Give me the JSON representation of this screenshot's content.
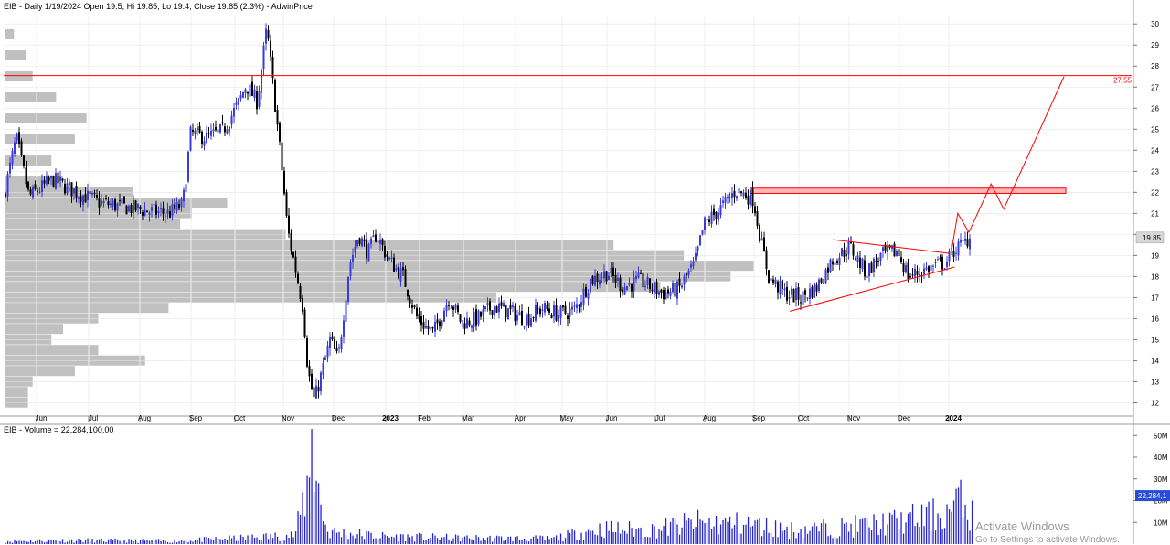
{
  "price_panel": {
    "header": "EIB - Daily 1/19/2024 Open 19.5, Hi 19.85, Lo 19.4, Close 19.85 (2.3%) - AdwinPrice"
  },
  "volume_panel": {
    "header": "EIB - Volume = 22,284,100.00"
  },
  "watermark": {
    "line1": "Activate Windows",
    "line2": "Go to Settings to activate Windows."
  },
  "colors": {
    "up_candle": "#3b3bdc",
    "down_candle": "#000000",
    "volume_bar": "#2323d0",
    "volume_profile": "#c0c0c0",
    "annotation": "#ff0000",
    "resistance_zone_fill": "#ffb6b6",
    "grid": "#e4e4e4",
    "price_badge": "#d8d8d8",
    "volume_badge": "#2a4bd7"
  },
  "chart_data": [
    {
      "type": "candlestick",
      "ticker": "EIB",
      "x_labels": [
        "Jun",
        "Jul",
        "Aug",
        "Sep",
        "Oct",
        "Nov",
        "Dec",
        "2023",
        "Feb",
        "Mar",
        "Apr",
        "May",
        "Jun",
        "Jul",
        "Aug",
        "Sep",
        "Oct",
        "Nov",
        "Dec",
        "2024"
      ],
      "y_ticks": [
        12,
        13,
        14,
        15,
        16,
        17,
        18,
        19,
        20,
        21,
        22,
        23,
        24,
        25,
        26,
        27,
        28,
        29,
        30
      ],
      "ylim": [
        11.5,
        30.4
      ],
      "last_price_label": "19.85",
      "horizontal_line": {
        "value": 27.55,
        "label": "27.55"
      },
      "resistance_zone": {
        "low": 21.95,
        "high": 22.2,
        "from_month": "Aug",
        "to_month": "2024"
      },
      "triangle": {
        "upper": [
          {
            "date": "2023-10-25",
            "value": 19.75
          },
          {
            "date": "2024-01-07",
            "value": 19.1
          }
        ],
        "lower": [
          {
            "date": "2023-09-28",
            "value": 16.35
          },
          {
            "date": "2024-01-10",
            "value": 18.45
          }
        ]
      },
      "projection_path": [
        {
          "date": "2024-01-08",
          "value": 19.2
        },
        {
          "date": "2024-01-12",
          "value": 21.0
        },
        {
          "date": "2024-01-19",
          "value": 20.1
        },
        {
          "date": "2024-02-02",
          "value": 22.4
        },
        {
          "date": "2024-02-10",
          "value": 21.2
        },
        {
          "date": "2024-03-19",
          "value": 27.5
        }
      ],
      "price_path": [
        {
          "date": "2022-05-20",
          "value": 21.8
        },
        {
          "date": "2022-05-28",
          "value": 24.6
        },
        {
          "date": "2022-06-05",
          "value": 21.8
        },
        {
          "date": "2022-06-20",
          "value": 22.6
        },
        {
          "date": "2022-07-05",
          "value": 22.0
        },
        {
          "date": "2022-07-20",
          "value": 21.5
        },
        {
          "date": "2022-08-05",
          "value": 21.3
        },
        {
          "date": "2022-08-20",
          "value": 21.1
        },
        {
          "date": "2022-09-01",
          "value": 21.0
        },
        {
          "date": "2022-09-10",
          "value": 21.4
        },
        {
          "date": "2022-09-15",
          "value": 24.8
        },
        {
          "date": "2022-09-25",
          "value": 24.6
        },
        {
          "date": "2022-10-05",
          "value": 24.9
        },
        {
          "date": "2022-10-15",
          "value": 26.2
        },
        {
          "date": "2022-10-20",
          "value": 27.1
        },
        {
          "date": "2022-10-27",
          "value": 26.3
        },
        {
          "date": "2022-11-02",
          "value": 29.8
        },
        {
          "date": "2022-11-07",
          "value": 26.4
        },
        {
          "date": "2022-11-12",
          "value": 22.8
        },
        {
          "date": "2022-11-15",
          "value": 20.3
        },
        {
          "date": "2022-11-25",
          "value": 16.5
        },
        {
          "date": "2022-11-28",
          "value": 13.5
        },
        {
          "date": "2022-12-02",
          "value": 12.1
        },
        {
          "date": "2022-12-07",
          "value": 13.5
        },
        {
          "date": "2022-12-12",
          "value": 15.0
        },
        {
          "date": "2022-12-17",
          "value": 14.0
        },
        {
          "date": "2022-12-24",
          "value": 18.5
        },
        {
          "date": "2022-12-30",
          "value": 20.0
        },
        {
          "date": "2023-01-05",
          "value": 19.1
        },
        {
          "date": "2023-01-10",
          "value": 20.0
        },
        {
          "date": "2023-01-18",
          "value": 18.8
        },
        {
          "date": "2023-01-27",
          "value": 18.0
        },
        {
          "date": "2023-02-05",
          "value": 16.0
        },
        {
          "date": "2023-02-15",
          "value": 15.3
        },
        {
          "date": "2023-02-25",
          "value": 17.0
        },
        {
          "date": "2023-03-05",
          "value": 15.8
        },
        {
          "date": "2023-03-15",
          "value": 16.0
        },
        {
          "date": "2023-03-25",
          "value": 16.6
        },
        {
          "date": "2023-04-05",
          "value": 16.3
        },
        {
          "date": "2023-04-15",
          "value": 16.0
        },
        {
          "date": "2023-04-25",
          "value": 16.5
        },
        {
          "date": "2023-05-05",
          "value": 16.2
        },
        {
          "date": "2023-05-15",
          "value": 16.4
        },
        {
          "date": "2023-05-25",
          "value": 17.8
        },
        {
          "date": "2023-06-05",
          "value": 18.2
        },
        {
          "date": "2023-06-15",
          "value": 17.5
        },
        {
          "date": "2023-06-25",
          "value": 17.8
        },
        {
          "date": "2023-07-10",
          "value": 17.2
        },
        {
          "date": "2023-07-20",
          "value": 17.4
        },
        {
          "date": "2023-07-30",
          "value": 18.6
        },
        {
          "date": "2023-08-05",
          "value": 20.5
        },
        {
          "date": "2023-08-15",
          "value": 21.2
        },
        {
          "date": "2023-08-25",
          "value": 22.1
        },
        {
          "date": "2023-09-05",
          "value": 21.7
        },
        {
          "date": "2023-09-10",
          "value": 19.6
        },
        {
          "date": "2023-09-15",
          "value": 17.9
        },
        {
          "date": "2023-09-25",
          "value": 17.2
        },
        {
          "date": "2023-10-05",
          "value": 17.0
        },
        {
          "date": "2023-10-15",
          "value": 17.5
        },
        {
          "date": "2023-10-25",
          "value": 18.8
        },
        {
          "date": "2023-11-05",
          "value": 19.4
        },
        {
          "date": "2023-11-15",
          "value": 18.2
        },
        {
          "date": "2023-11-25",
          "value": 19.0
        },
        {
          "date": "2023-12-05",
          "value": 19.2
        },
        {
          "date": "2023-12-12",
          "value": 18.0
        },
        {
          "date": "2023-12-25",
          "value": 18.4
        },
        {
          "date": "2024-01-05",
          "value": 18.7
        },
        {
          "date": "2024-01-10",
          "value": 19.3
        },
        {
          "date": "2024-01-15",
          "value": 19.5
        },
        {
          "date": "2024-01-19",
          "value": 19.85
        }
      ],
      "volume_profile_bins": [
        {
          "price": 29.5,
          "volume": 0.04
        },
        {
          "price": 28.5,
          "volume": 0.09
        },
        {
          "price": 27.5,
          "volume": 0.12
        },
        {
          "price": 26.5,
          "volume": 0.22
        },
        {
          "price": 25.5,
          "volume": 0.35
        },
        {
          "price": 24.5,
          "volume": 0.3
        },
        {
          "price": 23.5,
          "volume": 0.2
        },
        {
          "price": 22.5,
          "volume": 0.25
        },
        {
          "price": 22.0,
          "volume": 0.55
        },
        {
          "price": 21.5,
          "volume": 0.95
        },
        {
          "price": 21.0,
          "volume": 0.8
        },
        {
          "price": 20.5,
          "volume": 0.75
        },
        {
          "price": 20.0,
          "volume": 1.2
        },
        {
          "price": 19.5,
          "volume": 2.6
        },
        {
          "price": 19.0,
          "volume": 2.9
        },
        {
          "price": 18.5,
          "volume": 3.2
        },
        {
          "price": 18.0,
          "volume": 3.1
        },
        {
          "price": 17.5,
          "volume": 2.8
        },
        {
          "price": 17.0,
          "volume": 2.1
        },
        {
          "price": 16.5,
          "volume": 0.7
        },
        {
          "price": 16.0,
          "volume": 0.4
        },
        {
          "price": 15.5,
          "volume": 0.25
        },
        {
          "price": 15.0,
          "volume": 0.2
        },
        {
          "price": 14.5,
          "volume": 0.4
        },
        {
          "price": 14.0,
          "volume": 0.6
        },
        {
          "price": 13.5,
          "volume": 0.3
        },
        {
          "price": 13.0,
          "volume": 0.12
        },
        {
          "price": 12.5,
          "volume": 0.1
        },
        {
          "price": 12.0,
          "volume": 0.1
        }
      ]
    },
    {
      "type": "bar",
      "name": "Volume",
      "y_ticks": [
        "10M",
        "20M",
        "30M",
        "40M",
        "50M"
      ],
      "ylim": [
        0,
        56000000
      ],
      "last_value_label": "22,284,1",
      "volume_path": [
        {
          "date": "2022-05-20",
          "value": 2000000
        },
        {
          "date": "2022-07-01",
          "value": 2500000
        },
        {
          "date": "2022-09-01",
          "value": 2000000
        },
        {
          "date": "2022-10-20",
          "value": 4000000
        },
        {
          "date": "2022-11-20",
          "value": 6000000
        },
        {
          "date": "2022-12-01",
          "value": 53000000
        },
        {
          "date": "2022-12-10",
          "value": 8000000
        },
        {
          "date": "2023-01-15",
          "value": 5000000
        },
        {
          "date": "2023-03-01",
          "value": 4000000
        },
        {
          "date": "2023-05-01",
          "value": 3500000
        },
        {
          "date": "2023-06-01",
          "value": 10000000
        },
        {
          "date": "2023-07-01",
          "value": 9000000
        },
        {
          "date": "2023-08-01",
          "value": 14000000
        },
        {
          "date": "2023-09-01",
          "value": 13000000
        },
        {
          "date": "2023-10-01",
          "value": 9000000
        },
        {
          "date": "2023-11-01",
          "value": 11000000
        },
        {
          "date": "2023-12-01",
          "value": 14000000
        },
        {
          "date": "2024-01-05",
          "value": 20000000
        },
        {
          "date": "2024-01-12",
          "value": 28000000
        },
        {
          "date": "2024-01-19",
          "value": 22284100
        }
      ]
    }
  ]
}
